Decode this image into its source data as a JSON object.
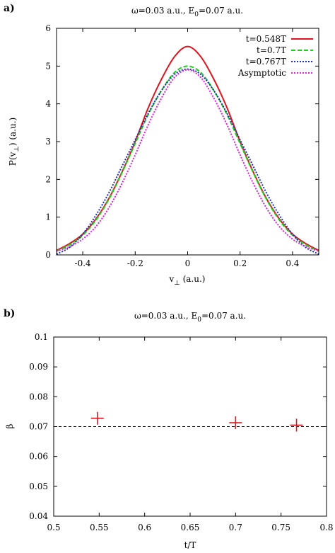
{
  "chart_data": [
    {
      "panel_label": "a)",
      "type": "line",
      "title_prefix": "ω=0.03 a.u., E",
      "title_sub": "0",
      "title_suffix": "=0.07 a.u.",
      "xlabel_main": "v",
      "xlabel_sub": "⊥",
      "xlabel_suffix": " (a.u.)",
      "ylabel_main": "P(v",
      "ylabel_sub": "⊥",
      "ylabel_suffix": ") (a.u.)",
      "xlim": [
        -0.5,
        0.5
      ],
      "ylim": [
        0,
        6
      ],
      "xticks": [
        -0.4,
        -0.2,
        0,
        0.2,
        0.4
      ],
      "xtick_labels": [
        "-0.4",
        "-0.2",
        "0",
        "0.2",
        "0.4"
      ],
      "yticks": [
        0,
        1,
        2,
        3,
        4,
        5,
        6
      ],
      "ytick_labels": [
        "0",
        "1",
        "2",
        "3",
        "4",
        "5",
        "6"
      ],
      "grid": false,
      "legend_position": "top-right",
      "series": [
        {
          "name": "t=0.548T",
          "color": "#e0141e",
          "dash": "solid",
          "x": [
            -0.5,
            -0.45,
            -0.4,
            -0.35,
            -0.3,
            -0.25,
            -0.2,
            -0.15,
            -0.1,
            -0.05,
            0,
            0.05,
            0.1,
            0.15,
            0.2,
            0.25,
            0.3,
            0.35,
            0.4,
            0.45,
            0.5
          ],
          "y": [
            0.12,
            0.3,
            0.55,
            0.95,
            1.5,
            2.2,
            3.0,
            3.9,
            4.65,
            5.25,
            5.52,
            5.25,
            4.65,
            3.9,
            3.0,
            2.2,
            1.5,
            0.95,
            0.55,
            0.3,
            0.12
          ]
        },
        {
          "name": "t=0.7T",
          "color": "#22cc22",
          "dash": "dashed",
          "x": [
            -0.5,
            -0.45,
            -0.4,
            -0.35,
            -0.3,
            -0.25,
            -0.2,
            -0.15,
            -0.1,
            -0.05,
            0,
            0.05,
            0.1,
            0.15,
            0.2,
            0.25,
            0.3,
            0.35,
            0.4,
            0.45,
            0.5
          ],
          "y": [
            0.1,
            0.27,
            0.52,
            0.92,
            1.48,
            2.18,
            2.95,
            3.72,
            4.35,
            4.83,
            5.0,
            4.83,
            4.35,
            3.72,
            2.95,
            2.18,
            1.48,
            0.92,
            0.52,
            0.27,
            0.1
          ]
        },
        {
          "name": "t=0.767T",
          "color": "#1a2fbd",
          "dash": "dotted",
          "x": [
            -0.5,
            -0.45,
            -0.4,
            -0.35,
            -0.3,
            -0.25,
            -0.2,
            -0.15,
            -0.1,
            -0.05,
            0,
            0.05,
            0.1,
            0.15,
            0.2,
            0.25,
            0.3,
            0.35,
            0.4,
            0.45,
            0.5
          ],
          "y": [
            0.02,
            0.2,
            0.55,
            1.05,
            1.65,
            2.35,
            3.05,
            3.75,
            4.35,
            4.78,
            4.92,
            4.78,
            4.35,
            3.75,
            3.05,
            2.35,
            1.65,
            1.05,
            0.55,
            0.2,
            0.02
          ]
        },
        {
          "name": "Asymptotic",
          "color": "#e01ee0",
          "dash": "dotted",
          "x": [
            -0.5,
            -0.45,
            -0.4,
            -0.35,
            -0.3,
            -0.25,
            -0.2,
            -0.15,
            -0.1,
            -0.05,
            0,
            0.05,
            0.1,
            0.15,
            0.2,
            0.25,
            0.3,
            0.35,
            0.4,
            0.45,
            0.5
          ],
          "y": [
            0.1,
            0.22,
            0.42,
            0.75,
            1.25,
            1.9,
            2.65,
            3.45,
            4.15,
            4.7,
            4.9,
            4.7,
            4.15,
            3.45,
            2.65,
            1.9,
            1.25,
            0.75,
            0.42,
            0.22,
            0.1
          ]
        }
      ]
    },
    {
      "panel_label": "b)",
      "type": "scatter",
      "title_prefix": "ω=0.03 a.u., E",
      "title_sub": "0",
      "title_suffix": "=0.07 a.u.",
      "xlabel": "t/T",
      "ylabel": "β",
      "xlim": [
        0.5,
        0.8
      ],
      "ylim": [
        0.04,
        0.1
      ],
      "xticks": [
        0.5,
        0.55,
        0.6,
        0.65,
        0.7,
        0.75,
        0.8
      ],
      "xtick_labels": [
        "0.5",
        "0.55",
        "0.6",
        "0.65",
        "0.7",
        "0.75",
        "0.8"
      ],
      "yticks": [
        0.04,
        0.05,
        0.06,
        0.07,
        0.08,
        0.09,
        0.1
      ],
      "ytick_labels": [
        "0.04",
        "0.05",
        "0.06",
        "0.07",
        "0.08",
        "0.09",
        "0.1"
      ],
      "grid": false,
      "reference_line": 0.07,
      "reference_color": "#000000",
      "marker_color": "#e0141e",
      "x": [
        0.548,
        0.7,
        0.767
      ],
      "y": [
        0.0728,
        0.0713,
        0.0705
      ]
    }
  ]
}
